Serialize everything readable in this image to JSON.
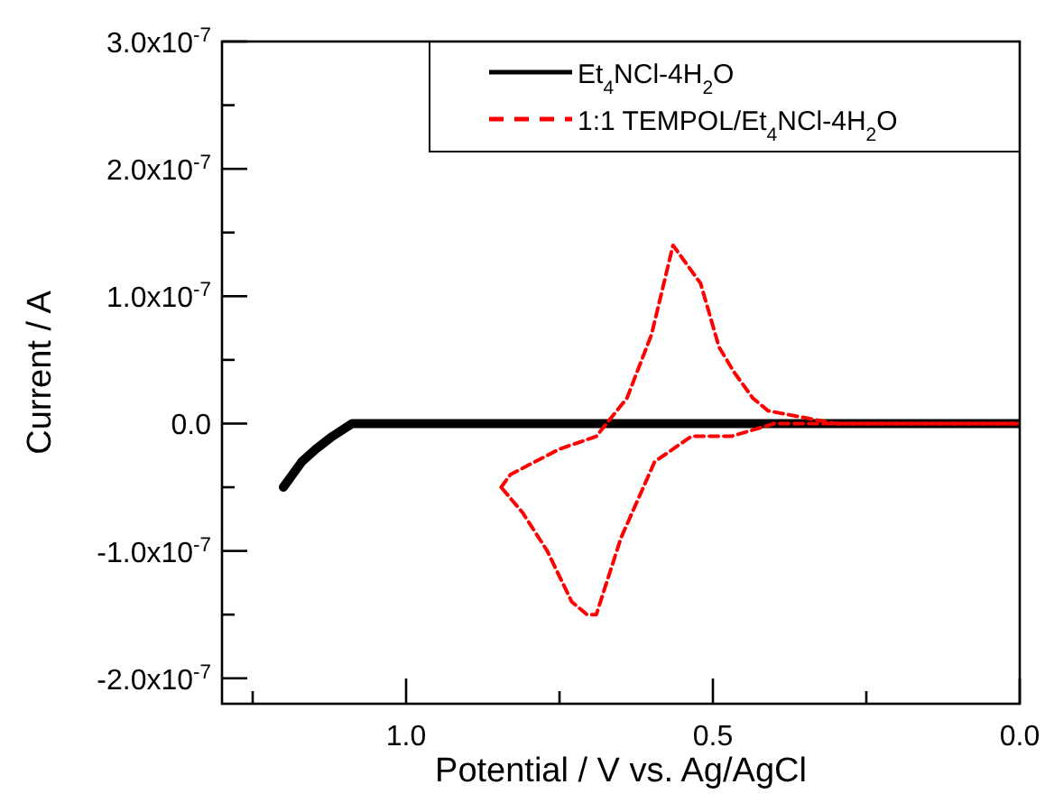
{
  "chart_data": {
    "type": "line",
    "xlabel": "Potential / V vs. Ag/AgCl",
    "ylabel": "Current / A",
    "xlim": [
      1.3,
      0.0
    ],
    "xticks": [
      {
        "value": 1.25,
        "label": null
      },
      {
        "value": 1.0,
        "label": "1.0"
      },
      {
        "value": 0.75,
        "label": null
      },
      {
        "value": 0.5,
        "label": "0.5"
      },
      {
        "value": 0.25,
        "label": null
      },
      {
        "value": 0.0,
        "label": "0.0"
      }
    ],
    "ylim": [
      -2.2e-07,
      3e-07
    ],
    "yticks": [
      {
        "value": -2e-07,
        "label": "-2.0x10$^{-7}$"
      },
      {
        "value": -1.5e-07,
        "label": null
      },
      {
        "value": -1e-07,
        "label": "-1.0x10$^{-7}$"
      },
      {
        "value": -5e-08,
        "label": null
      },
      {
        "value": 0,
        "label": "0.0"
      },
      {
        "value": 5e-08,
        "label": null
      },
      {
        "value": 1e-07,
        "label": "1.0x10$^{-7}$"
      },
      {
        "value": 1.5e-07,
        "label": null
      },
      {
        "value": 2e-07,
        "label": "2.0x10$^{-7}$"
      },
      {
        "value": 2.5e-07,
        "label": null
      },
      {
        "value": 3e-07,
        "label": "3.0x10$^{-7}$"
      }
    ],
    "legend": "top right",
    "grid": false,
    "series": [
      {
        "name": "Et$_{4}$NCl-4H$_{2}$O",
        "color": "#000000",
        "line_style": "solid",
        "x": [
          1.2,
          1.17,
          1.147,
          1.12,
          1.088,
          1.07,
          1.053,
          1.0,
          0.9,
          0.8,
          0.6,
          0.4,
          0.2,
          0.0
        ],
        "values": [
          -5e-08,
          -3e-08,
          -2e-08,
          -1e-08,
          0,
          0,
          0,
          0,
          0,
          0,
          0,
          0,
          0,
          0
        ]
      },
      {
        "name": "1:1 TEMPOL/Et$_{4}$NCl-4H$_{2}$O",
        "color": "#ff0000",
        "line_style": "dashed",
        "x": [
          0.0,
          0.2,
          0.4,
          0.47,
          0.535,
          0.595,
          0.65,
          0.69,
          0.705,
          0.73,
          0.77,
          0.81,
          0.845
        ],
        "values": [
          0,
          0,
          0,
          -1e-08,
          -1e-08,
          -3e-08,
          -9e-08,
          -1.5e-07,
          -1.5e-07,
          -1.4e-07,
          -1e-07,
          -7e-08,
          -5e-08
        ]
      },
      {
        "color": "#ff0000",
        "line_style": "dashed",
        "x": [
          0.845,
          0.83,
          0.75,
          0.69,
          0.64,
          0.6,
          0.565,
          0.52,
          0.49,
          0.465,
          0.435,
          0.41,
          0.3,
          0.15,
          0.0
        ],
        "values": [
          -5e-08,
          -4e-08,
          -2e-08,
          -1e-08,
          2e-08,
          7e-08,
          1.4e-07,
          1.1e-07,
          6e-08,
          4e-08,
          2e-08,
          1e-08,
          0,
          0,
          0
        ]
      }
    ]
  }
}
